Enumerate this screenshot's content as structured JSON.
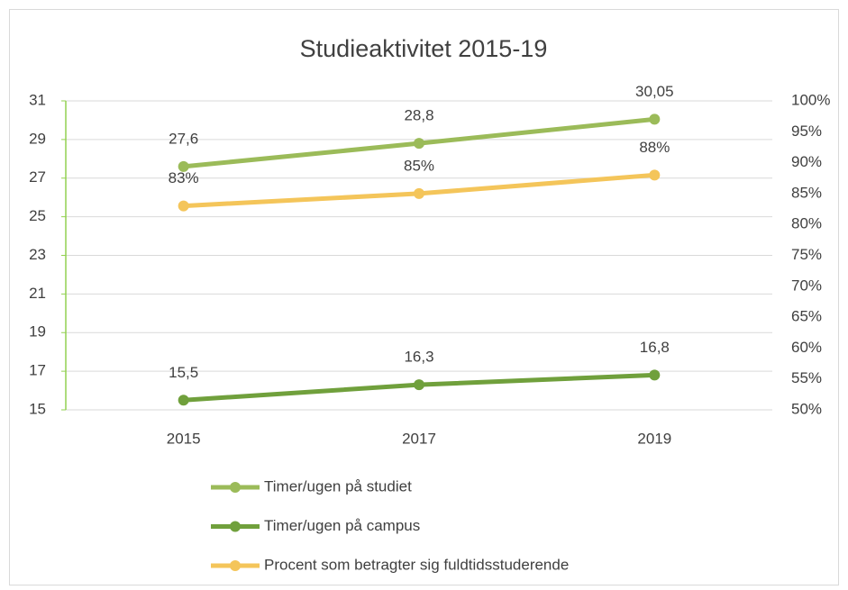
{
  "chart_data": {
    "type": "line",
    "title": "Studieaktivitet 2015-19",
    "categories": [
      "2015",
      "2017",
      "2019"
    ],
    "series": [
      {
        "name": "Timer/ugen på studiet",
        "color": "#9bbb59",
        "values": [
          27.6,
          28.8,
          30.05
        ],
        "value_labels": [
          "27,6",
          "28,8",
          "30,05"
        ]
      },
      {
        "name": "Timer/ugen på campus",
        "color": "#70a03c",
        "values": [
          15.5,
          16.3,
          16.8
        ],
        "value_labels": [
          "15,5",
          "16,3",
          "16,8"
        ]
      },
      {
        "name": "Procent som betragter sig fuldtidsstuderende",
        "color": "#f4c55a",
        "axis": "y2",
        "values": [
          83,
          85,
          88
        ],
        "value_labels": [
          "83%",
          "85%",
          "88%"
        ]
      }
    ],
    "ylim": [
      15,
      31
    ],
    "yticks": [
      15,
      17,
      19,
      21,
      23,
      25,
      27,
      29,
      31
    ],
    "y2lim": [
      50,
      100
    ],
    "y2ticks": [
      {
        "value": 50,
        "label": "50%"
      },
      {
        "value": 55,
        "label": "55%"
      },
      {
        "value": 60,
        "label": "60%"
      },
      {
        "value": 65,
        "label": "65%"
      },
      {
        "value": 70,
        "label": "70%"
      },
      {
        "value": 75,
        "label": "75%"
      },
      {
        "value": 80,
        "label": "80%"
      },
      {
        "value": 85,
        "label": "85%"
      },
      {
        "value": 90,
        "label": "90%"
      },
      {
        "value": 95,
        "label": "95%"
      },
      {
        "value": 100,
        "label": "100%"
      }
    ],
    "grid": true,
    "legend": "bottom"
  }
}
